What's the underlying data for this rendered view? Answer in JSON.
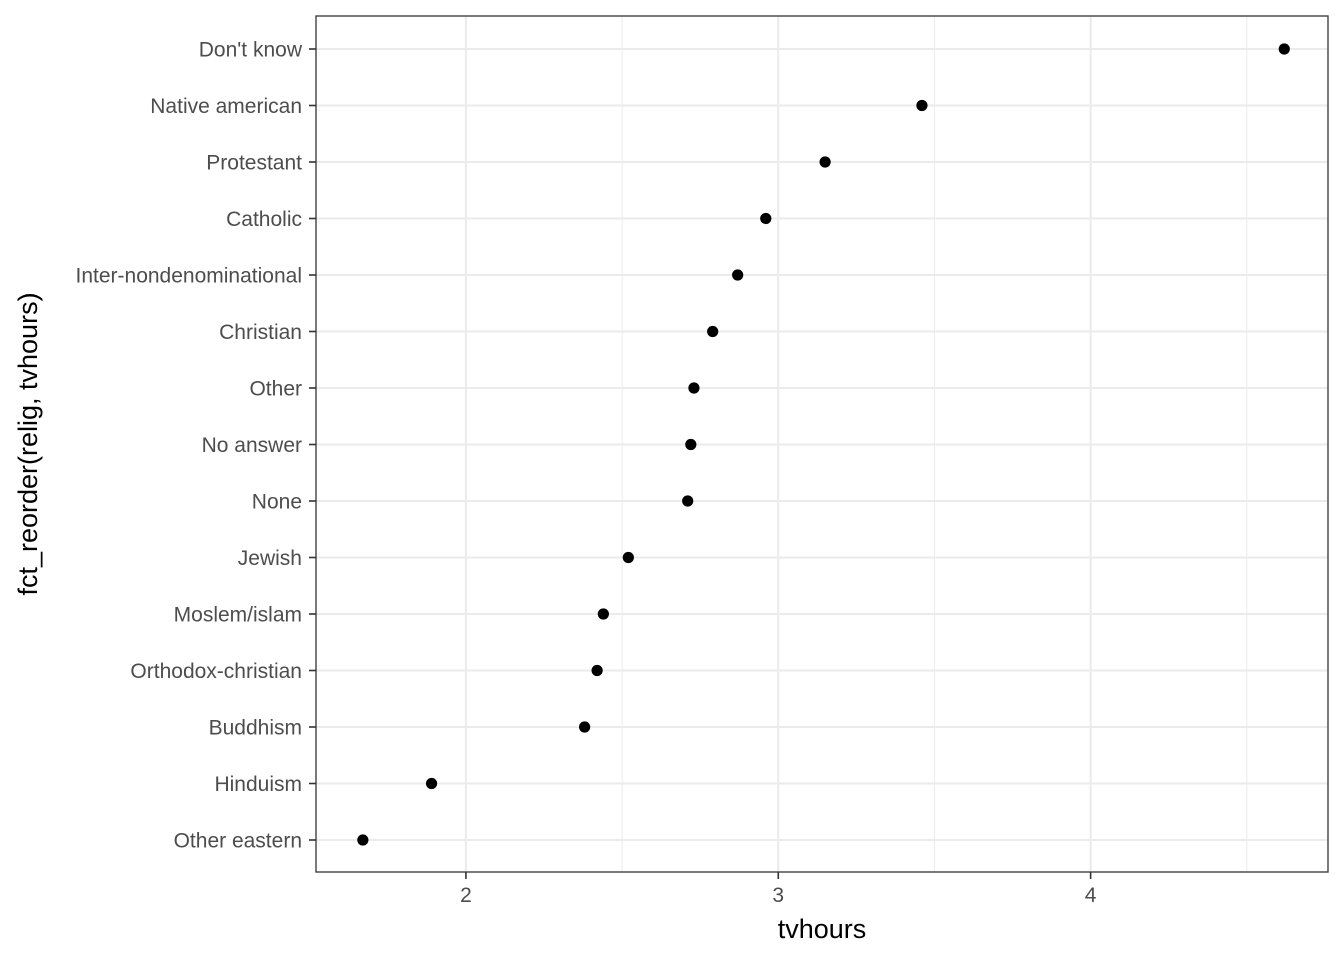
{
  "chart_data": {
    "type": "scatter",
    "xlabel": "tvhours",
    "ylabel": "fct_reorder(relig, tvhours)",
    "categories": [
      "Other eastern",
      "Hinduism",
      "Buddhism",
      "Orthodox-christian",
      "Moslem/islam",
      "Jewish",
      "None",
      "No answer",
      "Other",
      "Christian",
      "Inter-nondenominational",
      "Catholic",
      "Protestant",
      "Native american",
      "Don't know"
    ],
    "values": [
      1.67,
      1.89,
      2.38,
      2.42,
      2.44,
      2.52,
      2.71,
      2.72,
      2.73,
      2.79,
      2.87,
      2.96,
      3.15,
      3.46,
      4.62
    ],
    "xlim": [
      1.52,
      4.76
    ],
    "xticks": [
      2,
      3,
      4
    ],
    "xtick_labels": [
      "2",
      "3",
      "4"
    ],
    "grid": true,
    "theme": "bw",
    "point_color": "#000000"
  }
}
